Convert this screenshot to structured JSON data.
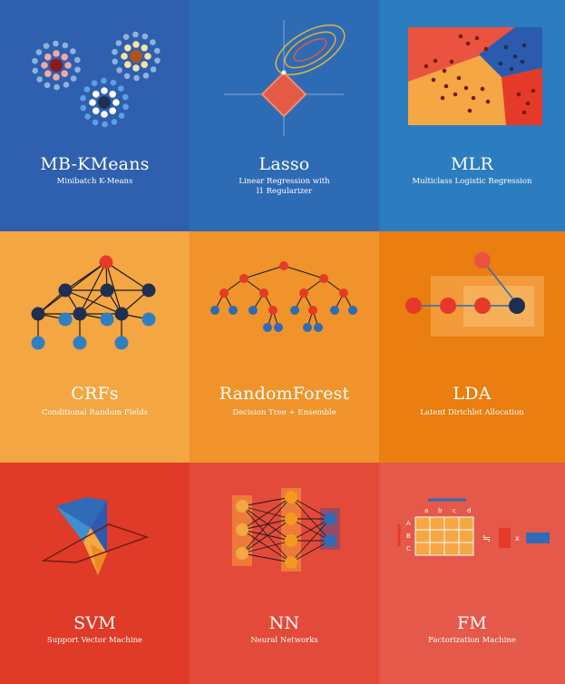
{
  "tiles": [
    {
      "id": "mbkmeans",
      "title": "MB-KMeans",
      "subtitle": "Minibatch K-Means",
      "color": "#2F5FAF",
      "illustration": "clustered-dots"
    },
    {
      "id": "lasso",
      "title": "Lasso",
      "subtitle": "Linear Regression with\nl1 Regularizer",
      "color": "#2E6BB5",
      "illustration": "contour-ellipses-diamond"
    },
    {
      "id": "mlr",
      "title": "MLR",
      "subtitle": "Multiclass Logistic Regression",
      "color": "#2C7CC0",
      "illustration": "region-scatter"
    },
    {
      "id": "crfs",
      "title": "CRFs",
      "subtitle": "Conditional Random Fields",
      "color": "#F3A641",
      "illustration": "graphical-model"
    },
    {
      "id": "randomforest",
      "title": "RandomForest",
      "subtitle": "Decision Tree + Ensemble",
      "color": "#EF932A",
      "illustration": "decision-tree"
    },
    {
      "id": "lda",
      "title": "LDA",
      "subtitle": "Latent Dirichlet Allocation",
      "color": "#EA7E10",
      "illustration": "plate-notation"
    },
    {
      "id": "svm",
      "title": "SVM",
      "subtitle": "Support Vector Machine",
      "color": "#E03A28",
      "illustration": "hyperplane"
    },
    {
      "id": "nn",
      "title": "NN",
      "subtitle": "Neural Networks",
      "color": "#E34A39",
      "illustration": "network-layers"
    },
    {
      "id": "fm",
      "title": "FM",
      "subtitle": "Factorization Machine",
      "color": "#E5594A",
      "illustration": "matrix-factorization"
    }
  ],
  "fm_matrix": {
    "cols": [
      "a",
      "b",
      "c",
      "d"
    ],
    "rows": [
      "A",
      "B",
      "C"
    ],
    "approx_symbol": "≒",
    "times_symbol": "x"
  }
}
